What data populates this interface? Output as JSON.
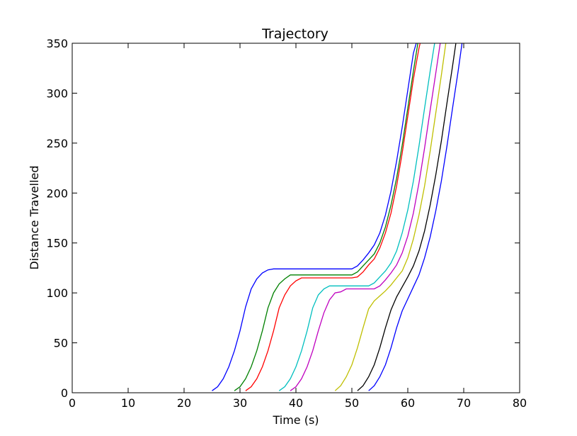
{
  "chart_data": {
    "type": "line",
    "title": "Trajectory",
    "xlabel": "Time (s)",
    "ylabel": "Distance Travelled",
    "xlim": [
      0,
      80
    ],
    "ylim": [
      0,
      350
    ],
    "x_ticks": [
      "0",
      "10",
      "20",
      "30",
      "40",
      "50",
      "60",
      "70",
      "80"
    ],
    "y_ticks": [
      "0",
      "50",
      "100",
      "150",
      "200",
      "250",
      "300",
      "350"
    ],
    "grid": false,
    "series": [
      {
        "color": "#0000ff",
        "points": [
          [
            25,
            2
          ],
          [
            26,
            6
          ],
          [
            27,
            14
          ],
          [
            28,
            26
          ],
          [
            29,
            42
          ],
          [
            30,
            62
          ],
          [
            31,
            86
          ],
          [
            32,
            104
          ],
          [
            33,
            114
          ],
          [
            34,
            120
          ],
          [
            35,
            123
          ],
          [
            36,
            124
          ],
          [
            40,
            124
          ],
          [
            45,
            124
          ],
          [
            50,
            124
          ],
          [
            51,
            127
          ],
          [
            52,
            133
          ],
          [
            53,
            140
          ],
          [
            54,
            148
          ],
          [
            55,
            160
          ],
          [
            56,
            178
          ],
          [
            57,
            202
          ],
          [
            58,
            232
          ],
          [
            59,
            266
          ],
          [
            60,
            303
          ],
          [
            61,
            340
          ],
          [
            61.5,
            350
          ]
        ]
      },
      {
        "color": "#008000",
        "points": [
          [
            29,
            2
          ],
          [
            30,
            6
          ],
          [
            31,
            14
          ],
          [
            32,
            26
          ],
          [
            33,
            42
          ],
          [
            34,
            62
          ],
          [
            35,
            85
          ],
          [
            36,
            100
          ],
          [
            37,
            109
          ],
          [
            38,
            114
          ],
          [
            39,
            118
          ],
          [
            40,
            118
          ],
          [
            45,
            118
          ],
          [
            50,
            118
          ],
          [
            51,
            121
          ],
          [
            52,
            127
          ],
          [
            53,
            133
          ],
          [
            54,
            139
          ],
          [
            55,
            150
          ],
          [
            56,
            166
          ],
          [
            57,
            188
          ],
          [
            58,
            215
          ],
          [
            59,
            248
          ],
          [
            60,
            285
          ],
          [
            61,
            322
          ],
          [
            61.8,
            350
          ]
        ]
      },
      {
        "color": "#ff0000",
        "points": [
          [
            31,
            2
          ],
          [
            32,
            6
          ],
          [
            33,
            14
          ],
          [
            34,
            26
          ],
          [
            35,
            42
          ],
          [
            36,
            62
          ],
          [
            37,
            85
          ],
          [
            38,
            98
          ],
          [
            39,
            107
          ],
          [
            40,
            112
          ],
          [
            41,
            115
          ],
          [
            42,
            115
          ],
          [
            45,
            115
          ],
          [
            50,
            115
          ],
          [
            51,
            116
          ],
          [
            52,
            121
          ],
          [
            53,
            128
          ],
          [
            54,
            134
          ],
          [
            55,
            145
          ],
          [
            56,
            160
          ],
          [
            57,
            180
          ],
          [
            58,
            207
          ],
          [
            59,
            240
          ],
          [
            60,
            277
          ],
          [
            61,
            314
          ],
          [
            62,
            345
          ],
          [
            62.2,
            350
          ]
        ]
      },
      {
        "color": "#00bfbf",
        "points": [
          [
            37,
            2
          ],
          [
            38,
            6
          ],
          [
            39,
            14
          ],
          [
            40,
            26
          ],
          [
            41,
            42
          ],
          [
            42,
            62
          ],
          [
            43,
            85
          ],
          [
            44,
            98
          ],
          [
            45,
            104
          ],
          [
            46,
            107
          ],
          [
            50,
            107
          ],
          [
            53,
            107
          ],
          [
            54,
            110
          ],
          [
            55,
            116
          ],
          [
            56,
            122
          ],
          [
            57,
            130
          ],
          [
            58,
            142
          ],
          [
            59,
            160
          ],
          [
            60,
            183
          ],
          [
            61,
            212
          ],
          [
            62,
            247
          ],
          [
            63,
            285
          ],
          [
            64,
            322
          ],
          [
            64.8,
            350
          ]
        ]
      },
      {
        "color": "#bf00bf",
        "points": [
          [
            39,
            2
          ],
          [
            40,
            6
          ],
          [
            41,
            14
          ],
          [
            42,
            26
          ],
          [
            43,
            42
          ],
          [
            44,
            62
          ],
          [
            45,
            80
          ],
          [
            46,
            93
          ],
          [
            47,
            100
          ],
          [
            48,
            101
          ],
          [
            49,
            104
          ],
          [
            50,
            104
          ],
          [
            54,
            104
          ],
          [
            55,
            107
          ],
          [
            56,
            113
          ],
          [
            57,
            120
          ],
          [
            58,
            128
          ],
          [
            59,
            140
          ],
          [
            60,
            157
          ],
          [
            61,
            180
          ],
          [
            62,
            210
          ],
          [
            63,
            245
          ],
          [
            64,
            283
          ],
          [
            65,
            320
          ],
          [
            65.8,
            350
          ]
        ]
      },
      {
        "color": "#bfbf00",
        "points": [
          [
            47,
            2
          ],
          [
            48,
            7
          ],
          [
            49,
            16
          ],
          [
            50,
            28
          ],
          [
            51,
            45
          ],
          [
            52,
            65
          ],
          [
            53,
            84
          ],
          [
            54,
            92
          ],
          [
            55,
            97
          ],
          [
            56,
            102
          ],
          [
            57,
            108
          ],
          [
            58,
            115
          ],
          [
            59,
            122
          ],
          [
            60,
            135
          ],
          [
            61,
            154
          ],
          [
            62,
            178
          ],
          [
            63,
            207
          ],
          [
            64,
            242
          ],
          [
            65,
            280
          ],
          [
            66,
            318
          ],
          [
            66.8,
            350
          ]
        ]
      },
      {
        "color": "#000000",
        "points": [
          [
            51,
            2
          ],
          [
            52,
            7
          ],
          [
            53,
            16
          ],
          [
            54,
            28
          ],
          [
            55,
            45
          ],
          [
            56,
            65
          ],
          [
            57,
            83
          ],
          [
            58,
            96
          ],
          [
            59,
            106
          ],
          [
            60,
            116
          ],
          [
            61,
            127
          ],
          [
            62,
            142
          ],
          [
            63,
            162
          ],
          [
            64,
            188
          ],
          [
            65,
            218
          ],
          [
            66,
            252
          ],
          [
            67,
            290
          ],
          [
            68,
            327
          ],
          [
            68.6,
            350
          ]
        ]
      },
      {
        "color": "#0000ff",
        "points": [
          [
            53,
            2
          ],
          [
            54,
            7
          ],
          [
            55,
            16
          ],
          [
            56,
            28
          ],
          [
            57,
            45
          ],
          [
            58,
            65
          ],
          [
            59,
            82
          ],
          [
            60,
            94
          ],
          [
            61,
            106
          ],
          [
            62,
            118
          ],
          [
            63,
            135
          ],
          [
            64,
            156
          ],
          [
            65,
            182
          ],
          [
            66,
            212
          ],
          [
            67,
            247
          ],
          [
            68,
            285
          ],
          [
            69,
            322
          ],
          [
            69.7,
            350
          ]
        ]
      }
    ]
  }
}
